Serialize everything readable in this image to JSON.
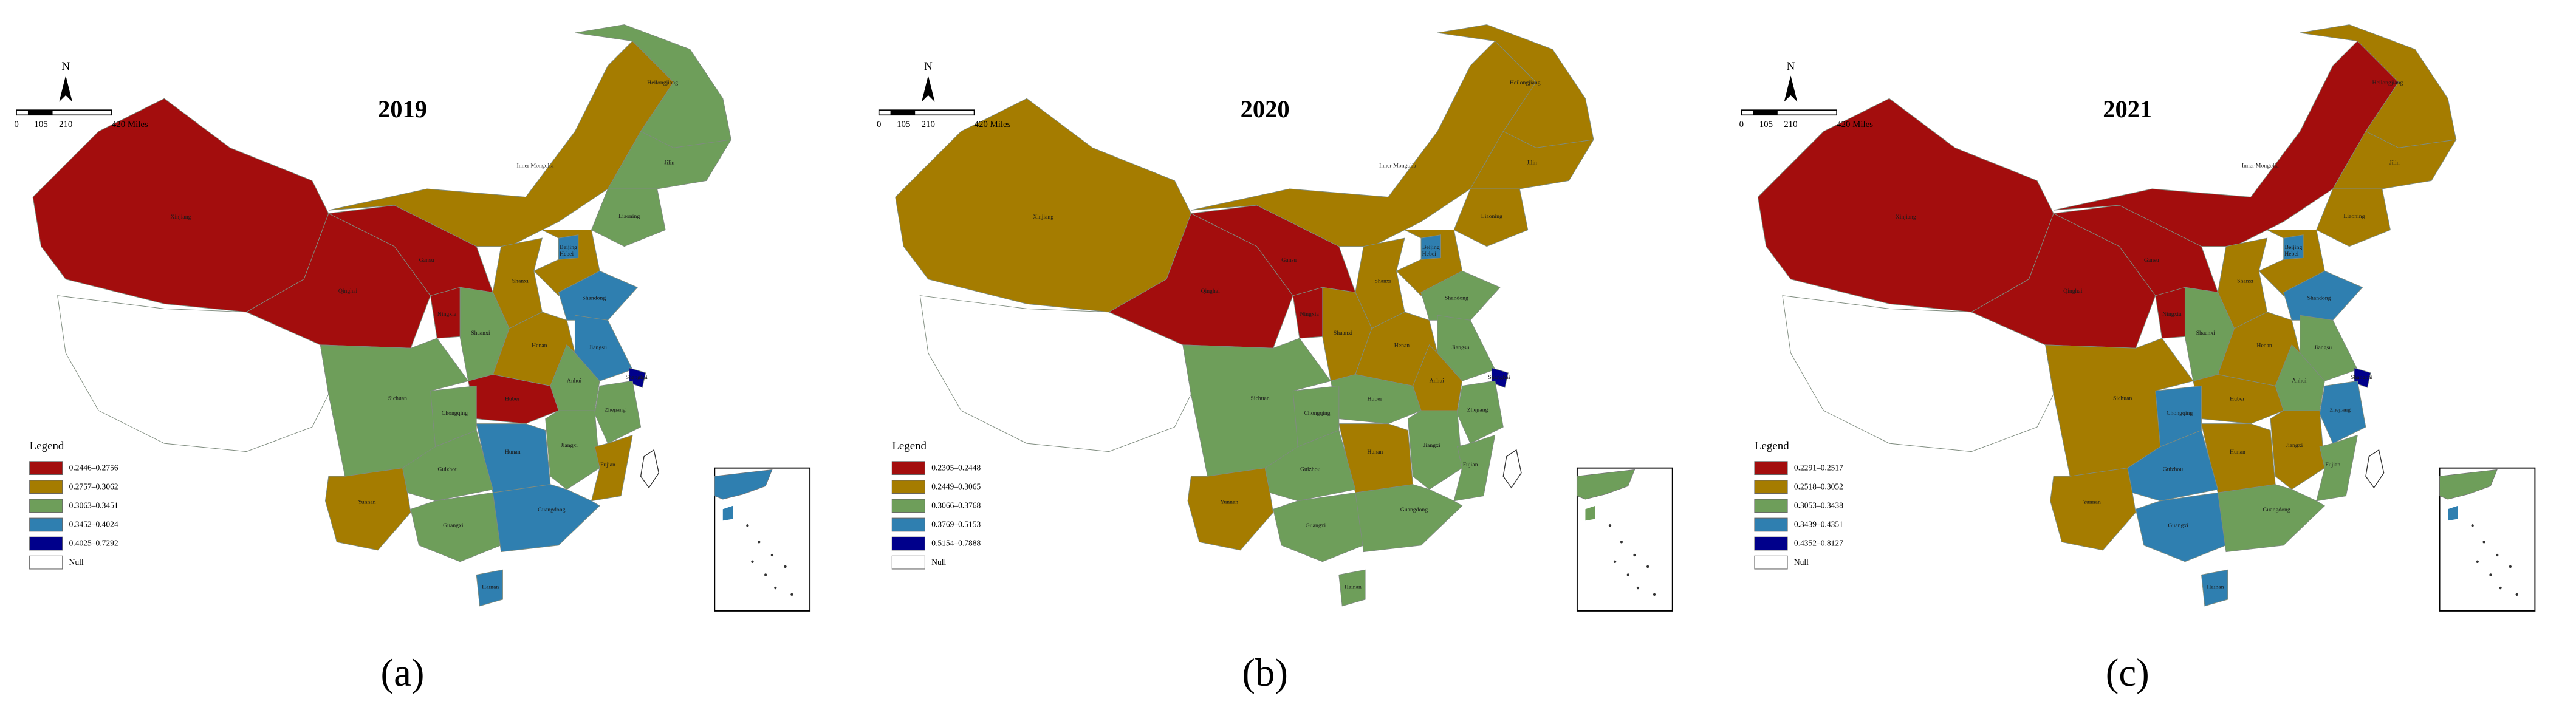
{
  "panels": [
    {
      "title": "2019",
      "caption": "(a)",
      "north": "N",
      "scale_labels": [
        "0",
        "105",
        "210",
        "420 Miles"
      ],
      "legend_title": "Legend",
      "legend": [
        {
          "label": "0.2446–0.2756",
          "color": "#a30d0d"
        },
        {
          "label": "0.2757–0.3062",
          "color": "#a57c00"
        },
        {
          "label": "0.3063–0.3451",
          "color": "#6e9e5a"
        },
        {
          "label": "0.3452–0.4024",
          "color": "#2f7fb0"
        },
        {
          "label": "0.4025–0.7292",
          "color": "#00008b"
        },
        {
          "label": "Null",
          "color": "#ffffff"
        }
      ],
      "provinces": [
        {
          "name": "Xinjiang",
          "color": "#a30d0d"
        },
        {
          "name": null,
          "color": "#ffffff"
        },
        {
          "name": "Qinghai",
          "color": "#a30d0d"
        },
        {
          "name": "Gansu",
          "color": "#a30d0d"
        },
        {
          "name": "Inner Mongolia",
          "color": "#a57c00"
        },
        {
          "name": "Heilongjiang",
          "color": "#6e9e5a"
        },
        {
          "name": "Jilin",
          "color": "#6e9e5a"
        },
        {
          "name": "Liaoning",
          "color": "#6e9e5a"
        },
        {
          "name": "Beijing",
          "color": "#2f7fb0"
        },
        {
          "name": "Hebei",
          "color": "#a57c00"
        },
        {
          "name": "Shanxi",
          "color": "#a57c00"
        },
        {
          "name": "Shaanxi",
          "color": "#6e9e5a"
        },
        {
          "name": "Ningxia",
          "color": "#a30d0d"
        },
        {
          "name": "Shandong",
          "color": "#2f7fb0"
        },
        {
          "name": "Henan",
          "color": "#a57c00"
        },
        {
          "name": "Jiangsu",
          "color": "#2f7fb0"
        },
        {
          "name": "Anhui",
          "color": "#6e9e5a"
        },
        {
          "name": "Shanghai",
          "color": "#00008b"
        },
        {
          "name": "Zhejiang",
          "color": "#6e9e5a"
        },
        {
          "name": "Hubei",
          "color": "#a30d0d"
        },
        {
          "name": "Chongqing",
          "color": "#6e9e5a"
        },
        {
          "name": "Sichuan",
          "color": "#6e9e5a"
        },
        {
          "name": "Hunan",
          "color": "#2f7fb0"
        },
        {
          "name": "Jiangxi",
          "color": "#6e9e5a"
        },
        {
          "name": "Fujian",
          "color": "#a57c00"
        },
        {
          "name": "Guizhou",
          "color": "#6e9e5a"
        },
        {
          "name": "Yunnan",
          "color": "#a57c00"
        },
        {
          "name": "Guangxi",
          "color": "#6e9e5a"
        },
        {
          "name": "Guangdong",
          "color": "#2f7fb0"
        },
        {
          "name": "Hainan",
          "color": "#2f7fb0"
        }
      ]
    },
    {
      "title": "2020",
      "caption": "(b)",
      "north": "N",
      "scale_labels": [
        "0",
        "105",
        "210",
        "420 Miles"
      ],
      "legend_title": "Legend",
      "legend": [
        {
          "label": "0.2305–0.2448",
          "color": "#a30d0d"
        },
        {
          "label": "0.2449–0.3065",
          "color": "#a57c00"
        },
        {
          "label": "0.3066–0.3768",
          "color": "#6e9e5a"
        },
        {
          "label": "0.3769–0.5153",
          "color": "#2f7fb0"
        },
        {
          "label": "0.5154–0.7888",
          "color": "#00008b"
        },
        {
          "label": "Null",
          "color": "#ffffff"
        }
      ],
      "provinces": [
        {
          "name": "Xinjiang",
          "color": "#a57c00"
        },
        {
          "name": null,
          "color": "#ffffff"
        },
        {
          "name": "Qinghai",
          "color": "#a30d0d"
        },
        {
          "name": "Gansu",
          "color": "#a30d0d"
        },
        {
          "name": "Inner Mongolia",
          "color": "#a57c00"
        },
        {
          "name": "Heilongjiang",
          "color": "#a57c00"
        },
        {
          "name": "Jilin",
          "color": "#a57c00"
        },
        {
          "name": "Liaoning",
          "color": "#a57c00"
        },
        {
          "name": "Beijing",
          "color": "#2f7fb0"
        },
        {
          "name": "Hebei",
          "color": "#a57c00"
        },
        {
          "name": "Shanxi",
          "color": "#a57c00"
        },
        {
          "name": "Shaanxi",
          "color": "#a57c00"
        },
        {
          "name": "Ningxia",
          "color": "#a30d0d"
        },
        {
          "name": "Shandong",
          "color": "#6e9e5a"
        },
        {
          "name": "Henan",
          "color": "#a57c00"
        },
        {
          "name": "Jiangsu",
          "color": "#6e9e5a"
        },
        {
          "name": "Anhui",
          "color": "#a57c00"
        },
        {
          "name": "Shanghai",
          "color": "#00008b"
        },
        {
          "name": "Zhejiang",
          "color": "#6e9e5a"
        },
        {
          "name": "Hubei",
          "color": "#6e9e5a"
        },
        {
          "name": "Chongqing",
          "color": "#6e9e5a"
        },
        {
          "name": "Sichuan",
          "color": "#6e9e5a"
        },
        {
          "name": "Hunan",
          "color": "#a57c00"
        },
        {
          "name": "Jiangxi",
          "color": "#6e9e5a"
        },
        {
          "name": "Fujian",
          "color": "#6e9e5a"
        },
        {
          "name": "Guizhou",
          "color": "#6e9e5a"
        },
        {
          "name": "Yunnan",
          "color": "#a57c00"
        },
        {
          "name": "Guangxi",
          "color": "#6e9e5a"
        },
        {
          "name": "Guangdong",
          "color": "#6e9e5a"
        },
        {
          "name": "Hainan",
          "color": "#6e9e5a"
        }
      ]
    },
    {
      "title": "2021",
      "caption": "(c)",
      "north": "N",
      "scale_labels": [
        "0",
        "105",
        "210",
        "420 Miles"
      ],
      "legend_title": "Legend",
      "legend": [
        {
          "label": "0.2291–0.2517",
          "color": "#a30d0d"
        },
        {
          "label": "0.2518–0.3052",
          "color": "#a57c00"
        },
        {
          "label": "0.3053–0.3438",
          "color": "#6e9e5a"
        },
        {
          "label": "0.3439–0.4351",
          "color": "#2f7fb0"
        },
        {
          "label": "0.4352–0.8127",
          "color": "#00008b"
        },
        {
          "label": "Null",
          "color": "#ffffff"
        }
      ],
      "provinces": [
        {
          "name": "Xinjiang",
          "color": "#a30d0d"
        },
        {
          "name": null,
          "color": "#ffffff"
        },
        {
          "name": "Qinghai",
          "color": "#a30d0d"
        },
        {
          "name": "Gansu",
          "color": "#a30d0d"
        },
        {
          "name": "Inner Mongolia",
          "color": "#a30d0d"
        },
        {
          "name": "Heilongjiang",
          "color": "#a57c00"
        },
        {
          "name": "Jilin",
          "color": "#a57c00"
        },
        {
          "name": "Liaoning",
          "color": "#a57c00"
        },
        {
          "name": "Beijing",
          "color": "#2f7fb0"
        },
        {
          "name": "Hebei",
          "color": "#a57c00"
        },
        {
          "name": "Shanxi",
          "color": "#a57c00"
        },
        {
          "name": "Shaanxi",
          "color": "#6e9e5a"
        },
        {
          "name": "Ningxia",
          "color": "#a30d0d"
        },
        {
          "name": "Shandong",
          "color": "#2f7fb0"
        },
        {
          "name": "Henan",
          "color": "#a57c00"
        },
        {
          "name": "Jiangsu",
          "color": "#6e9e5a"
        },
        {
          "name": "Anhui",
          "color": "#6e9e5a"
        },
        {
          "name": "Shanghai",
          "color": "#00008b"
        },
        {
          "name": "Zhejiang",
          "color": "#2f7fb0"
        },
        {
          "name": "Hubei",
          "color": "#a57c00"
        },
        {
          "name": "Chongqing",
          "color": "#2f7fb0"
        },
        {
          "name": "Sichuan",
          "color": "#a57c00"
        },
        {
          "name": "Hunan",
          "color": "#a57c00"
        },
        {
          "name": "Jiangxi",
          "color": "#a57c00"
        },
        {
          "name": "Fujian",
          "color": "#6e9e5a"
        },
        {
          "name": "Guizhou",
          "color": "#2f7fb0"
        },
        {
          "name": "Yunnan",
          "color": "#a57c00"
        },
        {
          "name": "Guangxi",
          "color": "#2f7fb0"
        },
        {
          "name": "Guangdong",
          "color": "#6e9e5a"
        },
        {
          "name": "Hainan",
          "color": "#2f7fb0"
        }
      ]
    }
  ]
}
